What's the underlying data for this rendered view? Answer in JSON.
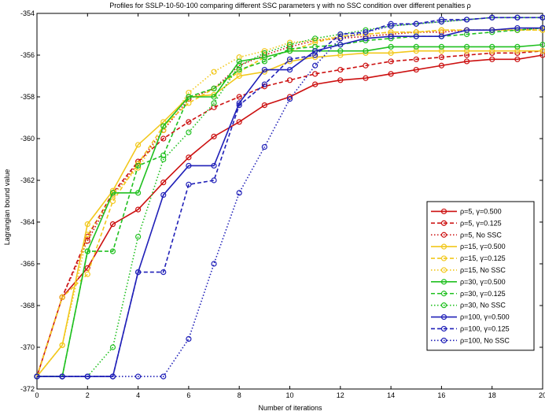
{
  "chart_data": {
    "type": "line",
    "title": "Profiles for SSLP-10-50-100 comparing different SSC parameters γ with no SSC condition over different penalties ρ",
    "xlabel": "Number of iterations",
    "ylabel": "Lagrangian bound value",
    "xlim": [
      0,
      20
    ],
    "ylim": [
      -372,
      -354
    ],
    "xticks": [
      0,
      2,
      4,
      6,
      8,
      10,
      12,
      14,
      16,
      18,
      20
    ],
    "yticks": [
      -372,
      -370,
      -368,
      -366,
      -364,
      -362,
      -360,
      -358,
      -356,
      -354
    ],
    "grid": false,
    "legend_position": "right",
    "x": [
      0,
      1,
      2,
      3,
      4,
      5,
      6,
      7,
      8,
      9,
      10,
      11,
      12,
      13,
      14,
      15,
      16,
      17,
      18,
      19,
      20
    ],
    "series": [
      {
        "name": "ρ=5, γ=0.500",
        "color": "#cc1010",
        "dash": "solid",
        "values": [
          -371.4,
          -367.6,
          -366.2,
          -364.1,
          -363.4,
          -362.1,
          -360.9,
          -359.9,
          -359.2,
          -358.4,
          -358.0,
          -357.4,
          -357.2,
          -357.1,
          -356.9,
          -356.7,
          -356.5,
          -356.3,
          -356.2,
          -356.2,
          -356.0
        ]
      },
      {
        "name": "ρ=5, γ=0.125",
        "color": "#cc1010",
        "dash": "dashed",
        "values": [
          -371.4,
          -367.6,
          -364.7,
          -362.6,
          -361.1,
          -360.0,
          -359.2,
          -358.5,
          -358.0,
          -357.5,
          -357.2,
          -356.9,
          -356.7,
          -356.5,
          -356.3,
          -356.2,
          -356.1,
          -356.0,
          -355.9,
          -355.9,
          -355.8
        ]
      },
      {
        "name": "ρ=5, No SSC",
        "color": "#cc1010",
        "dash": "dotted",
        "values": [
          -371.4,
          -367.6,
          -364.9,
          -362.7,
          -361.2,
          -359.6,
          -358.1,
          -357.6,
          -356.5,
          -356.0,
          -355.6,
          -355.3,
          -355.2,
          -355.1,
          -355.0,
          -354.9,
          -354.9,
          -354.8,
          -354.8,
          -354.8,
          -354.7
        ]
      },
      {
        "name": "ρ=15, γ=0.500",
        "color": "#f2c81c",
        "dash": "solid",
        "values": [
          -371.4,
          -369.9,
          -364.1,
          -362.5,
          -360.3,
          -359.2,
          -358.0,
          -357.9,
          -357.0,
          -356.8,
          -356.3,
          -356.1,
          -356.0,
          -355.9,
          -355.9,
          -355.8,
          -355.8,
          -355.8,
          -355.8,
          -355.8,
          -355.8
        ]
      },
      {
        "name": "ρ=15, γ=0.125",
        "color": "#f2c81c",
        "dash": "dashed",
        "values": [
          -371.4,
          -367.6,
          -366.5,
          -363.0,
          -361.2,
          -359.4,
          -358.3,
          -357.6,
          -356.8,
          -356.1,
          -355.8,
          -355.4,
          -355.1,
          -355.0,
          -354.9,
          -354.9,
          -354.8,
          -354.8,
          -354.8,
          -354.8,
          -354.8
        ]
      },
      {
        "name": "ρ=15, No SSC",
        "color": "#f2c81c",
        "dash": "dotted",
        "values": [
          -371.4,
          -369.9,
          -364.6,
          -362.7,
          -361.4,
          -359.6,
          -357.8,
          -356.8,
          -356.1,
          -355.8,
          -355.4,
          -355.3,
          -355.1,
          -355.0,
          -354.9,
          -354.9,
          -354.8,
          -354.8,
          -354.8,
          -354.8,
          -354.8
        ]
      },
      {
        "name": "ρ=30, γ=0.500",
        "color": "#20c020",
        "dash": "solid",
        "values": [
          -371.4,
          -371.4,
          -365.4,
          -362.6,
          -362.6,
          -359.4,
          -358.0,
          -358.0,
          -356.3,
          -356.1,
          -355.8,
          -355.8,
          -355.8,
          -355.8,
          -355.6,
          -355.6,
          -355.6,
          -355.6,
          -355.6,
          -355.6,
          -355.5
        ]
      },
      {
        "name": "ρ=30, γ=0.125",
        "color": "#20c020",
        "dash": "dashed",
        "values": [
          -371.4,
          -371.4,
          -365.4,
          -365.4,
          -361.3,
          -360.8,
          -358.0,
          -357.6,
          -356.7,
          -356.3,
          -355.7,
          -355.6,
          -355.5,
          -355.3,
          -355.2,
          -355.1,
          -355.1,
          -355.0,
          -354.9,
          -354.8,
          -354.7
        ]
      },
      {
        "name": "ρ=30, No SSC",
        "color": "#20c020",
        "dash": "dotted",
        "values": [
          -371.4,
          -371.4,
          -371.4,
          -370.0,
          -364.7,
          -361.0,
          -359.7,
          -358.3,
          -356.5,
          -355.9,
          -355.5,
          -355.2,
          -355.0,
          -354.8,
          -354.6,
          -354.5,
          -354.4,
          -354.3,
          -354.2,
          -354.2,
          -354.2
        ]
      },
      {
        "name": "ρ=100, γ=0.500",
        "color": "#2020b8",
        "dash": "solid",
        "values": [
          -371.4,
          -371.4,
          -371.4,
          -371.4,
          -366.4,
          -362.7,
          -361.3,
          -361.3,
          -358.3,
          -356.7,
          -356.7,
          -355.8,
          -355.5,
          -355.2,
          -355.1,
          -355.1,
          -355.1,
          -354.8,
          -354.8,
          -354.7,
          -354.7
        ]
      },
      {
        "name": "ρ=100, γ=0.125",
        "color": "#2020b8",
        "dash": "dashed",
        "values": [
          -371.4,
          -371.4,
          -371.4,
          -371.4,
          -366.4,
          -366.4,
          -362.2,
          -362.0,
          -358.4,
          -357.4,
          -356.2,
          -356.0,
          -355.0,
          -354.9,
          -354.5,
          -354.5,
          -354.3,
          -354.3,
          -354.2,
          -354.2,
          -354.2
        ]
      },
      {
        "name": "ρ=100, No SSC",
        "color": "#2020b8",
        "dash": "dotted",
        "values": [
          -371.4,
          -371.4,
          -371.4,
          -371.4,
          -371.4,
          -371.4,
          -369.6,
          -366.0,
          -362.6,
          -360.4,
          -358.1,
          -356.5,
          -355.2,
          -354.9,
          -354.6,
          -354.5,
          -354.4,
          -354.3,
          -354.2,
          -354.2,
          -354.2
        ]
      }
    ]
  }
}
